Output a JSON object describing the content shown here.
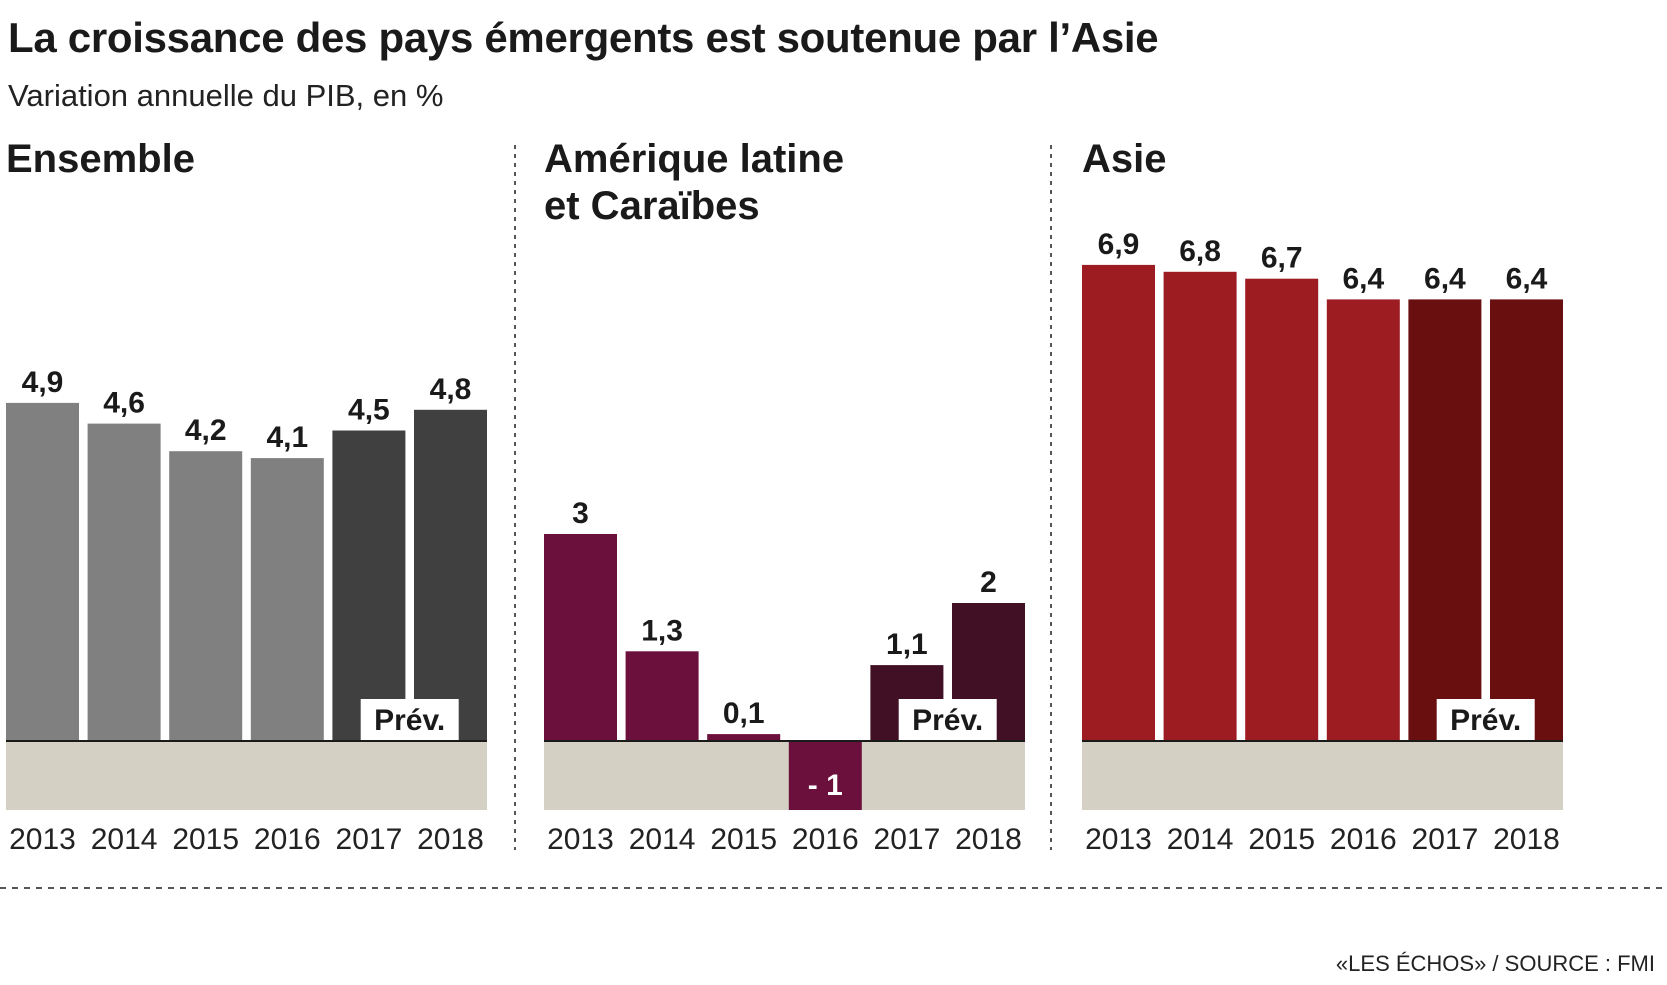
{
  "title": "La croissance des pays émergents est soutenue par l’Asie",
  "subtitle": "Variation annuelle du PIB, en %",
  "source": "«LES ÉCHOS» / SOURCE : FMI",
  "chart_data": [
    {
      "type": "bar",
      "title": "Ensemble",
      "categories": [
        "2013",
        "2014",
        "2015",
        "2016",
        "2017",
        "2018"
      ],
      "values": [
        4.9,
        4.6,
        4.2,
        4.1,
        4.5,
        4.8
      ],
      "value_labels": [
        "4,9",
        "4,6",
        "4,2",
        "4,1",
        "4,5",
        "4,8"
      ],
      "forecast_from": "2017",
      "forecast_label": "Prév.",
      "colors": {
        "actual": "#808080",
        "forecast": "#404040"
      },
      "ylim": [
        -1,
        9
      ]
    },
    {
      "type": "bar",
      "title": "Amérique latine\net Caraïbes",
      "categories": [
        "2013",
        "2014",
        "2015",
        "2016",
        "2017",
        "2018"
      ],
      "values": [
        3,
        1.3,
        0.1,
        -1,
        1.1,
        2
      ],
      "value_labels": [
        "3",
        "1,3",
        "0,1",
        "- 1",
        "1,1",
        "2"
      ],
      "forecast_from": "2017",
      "forecast_label": "Prév.",
      "colors": {
        "actual": "#6b0f3c",
        "forecast": "#421024"
      },
      "ylim": [
        -1,
        9
      ]
    },
    {
      "type": "bar",
      "title": "Asie",
      "categories": [
        "2013",
        "2014",
        "2015",
        "2016",
        "2017",
        "2018"
      ],
      "values": [
        6.9,
        6.8,
        6.7,
        6.4,
        6.4,
        6.4
      ],
      "value_labels": [
        "6,9",
        "6,8",
        "6,7",
        "6,4",
        "6,4",
        "6,4"
      ],
      "forecast_from": "2017",
      "forecast_label": "Prév.",
      "colors": {
        "actual": "#9c1c22",
        "forecast": "#6a0f0f"
      },
      "ylim": [
        -1,
        9
      ]
    }
  ],
  "colors": {
    "negative_band": "#d4d0c3",
    "baseline": "#1a1a1a",
    "divider": "#555555"
  }
}
